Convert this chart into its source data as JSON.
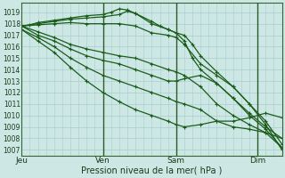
{
  "background_color": "#cde8e4",
  "grid_color": "#a8cccc",
  "line_color": "#1a5c1a",
  "marker_color": "#1a5c1a",
  "ylabel_ticks": [
    1007,
    1008,
    1009,
    1010,
    1011,
    1012,
    1013,
    1014,
    1015,
    1016,
    1017,
    1018,
    1019
  ],
  "ylim": [
    1006.5,
    1019.8
  ],
  "xlim": [
    0,
    96
  ],
  "xtick_positions": [
    0,
    30,
    57,
    87
  ],
  "xtick_labels": [
    "Jeu",
    "Ven",
    "Sam",
    "Dim"
  ],
  "xlabel": "Pression niveau de la mer( hPa )",
  "vlines": [
    30,
    57,
    87
  ],
  "lines": [
    {
      "x": [
        0,
        3,
        6,
        12,
        18,
        24,
        30,
        33,
        36,
        39,
        42,
        48,
        51,
        54,
        57,
        60,
        63,
        66,
        72,
        78,
        84,
        90,
        96
      ],
      "y": [
        1017.8,
        1017.9,
        1018.1,
        1018.3,
        1018.5,
        1018.7,
        1018.8,
        1019.0,
        1019.3,
        1019.2,
        1018.9,
        1018.2,
        1017.8,
        1017.5,
        1017.2,
        1017.0,
        1016.2,
        1015.2,
        1013.8,
        1012.5,
        1011.0,
        1009.2,
        1007.0
      ]
    },
    {
      "x": [
        0,
        6,
        12,
        18,
        24,
        30,
        36,
        39,
        42,
        48,
        54,
        57,
        60,
        63,
        66,
        72,
        78,
        84,
        90,
        96
      ],
      "y": [
        1017.8,
        1018.0,
        1018.2,
        1018.4,
        1018.5,
        1018.6,
        1018.8,
        1019.1,
        1018.9,
        1018.0,
        1017.5,
        1017.2,
        1016.5,
        1015.0,
        1014.0,
        1012.8,
        1011.5,
        1010.0,
        1008.8,
        1007.2
      ]
    },
    {
      "x": [
        0,
        6,
        12,
        18,
        24,
        30,
        36,
        42,
        48,
        54,
        57,
        60,
        66,
        72,
        78,
        84,
        90,
        96
      ],
      "y": [
        1017.8,
        1017.9,
        1018.0,
        1018.1,
        1018.0,
        1018.0,
        1018.0,
        1017.8,
        1017.2,
        1017.0,
        1016.8,
        1016.2,
        1014.5,
        1013.5,
        1012.5,
        1011.0,
        1009.5,
        1007.5
      ]
    },
    {
      "x": [
        0,
        6,
        12,
        18,
        24,
        30,
        36,
        42,
        48,
        54,
        57,
        60,
        66,
        72,
        78,
        84,
        90,
        96
      ],
      "y": [
        1017.8,
        1017.3,
        1016.8,
        1016.2,
        1015.8,
        1015.5,
        1015.2,
        1015.0,
        1014.5,
        1014.0,
        1013.8,
        1013.5,
        1012.5,
        1011.0,
        1010.0,
        1009.2,
        1008.5,
        1007.2
      ]
    },
    {
      "x": [
        0,
        6,
        12,
        18,
        24,
        30,
        36,
        42,
        48,
        54,
        57,
        60,
        66,
        72,
        78,
        84,
        90,
        96
      ],
      "y": [
        1017.8,
        1017.0,
        1016.5,
        1015.8,
        1015.2,
        1014.8,
        1014.5,
        1014.0,
        1013.5,
        1013.0,
        1013.0,
        1013.2,
        1013.5,
        1012.8,
        1011.5,
        1010.2,
        1009.0,
        1008.0
      ]
    },
    {
      "x": [
        0,
        6,
        12,
        18,
        24,
        30,
        36,
        42,
        48,
        54,
        57,
        60,
        66,
        72,
        78,
        84,
        90,
        96
      ],
      "y": [
        1017.5,
        1016.8,
        1016.0,
        1015.0,
        1014.2,
        1013.5,
        1013.0,
        1012.5,
        1012.0,
        1011.5,
        1011.2,
        1011.0,
        1010.5,
        1009.5,
        1009.0,
        1008.8,
        1008.5,
        1008.0
      ]
    },
    {
      "x": [
        0,
        6,
        12,
        18,
        24,
        30,
        36,
        42,
        48,
        54,
        57,
        60,
        66,
        72,
        78,
        84,
        90,
        96
      ],
      "y": [
        1017.5,
        1016.5,
        1015.5,
        1014.2,
        1013.0,
        1012.0,
        1011.2,
        1010.5,
        1010.0,
        1009.5,
        1009.2,
        1009.0,
        1009.2,
        1009.5,
        1009.5,
        1009.8,
        1010.2,
        1009.8
      ]
    }
  ]
}
